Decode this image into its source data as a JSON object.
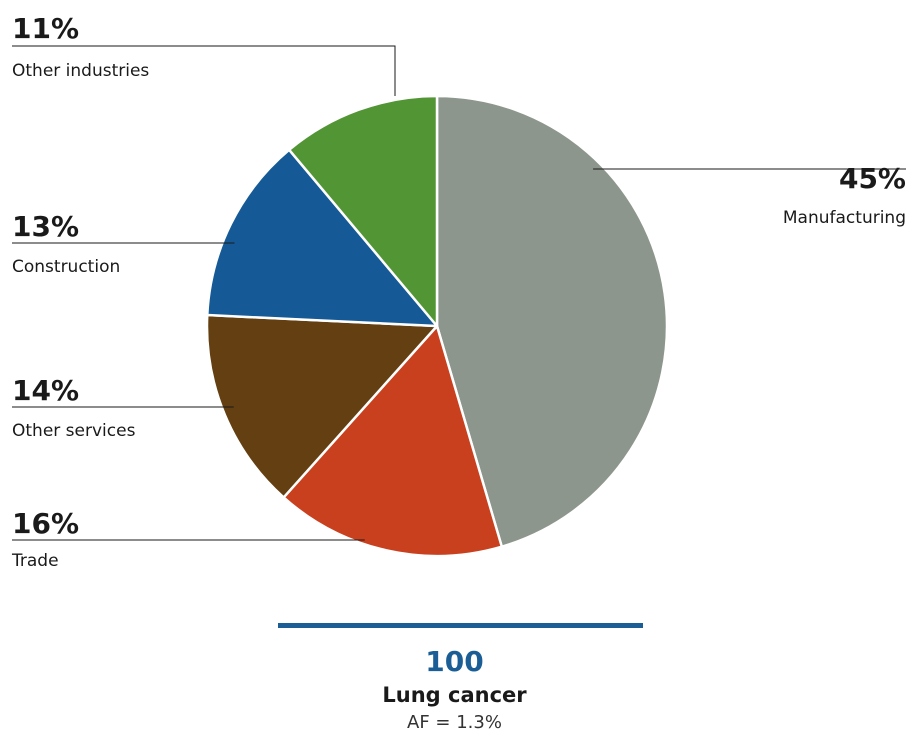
{
  "chart_data": {
    "type": "pie",
    "total_label": "100",
    "subtitle": "Lung cancer",
    "note": "AF = 1.3%",
    "slices": [
      {
        "label": "Manufacturing",
        "value": 45,
        "value_label": "45%",
        "color": "#8d968d"
      },
      {
        "label": "Trade",
        "value": 16,
        "value_label": "16%",
        "color": "#c9401e"
      },
      {
        "label": "Other services",
        "value": 14,
        "value_label": "14%",
        "color": "#643f11"
      },
      {
        "label": "Construction",
        "value": 13,
        "value_label": "13%",
        "color": "#155a96"
      },
      {
        "label": "Other industries",
        "value": 11,
        "value_label": "11%",
        "color": "#529535"
      }
    ],
    "accent_color": "#1b5e96"
  }
}
